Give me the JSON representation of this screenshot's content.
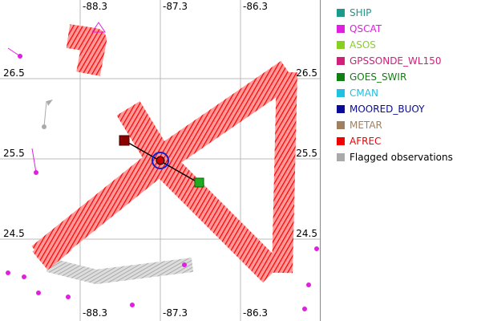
{
  "map": {
    "lon_labels_top": [
      "-88.3",
      "-87.3",
      "-86.3"
    ],
    "lon_labels_bottom": [
      "-88.3",
      "-87.3",
      "-86.3"
    ],
    "lat_labels_left": [
      "26.5",
      "25.5",
      "24.5"
    ],
    "lat_labels_right": [
      "26.5",
      "25.5",
      "24.5"
    ],
    "legend": [
      {
        "name": "SHIP",
        "color": "#1a9a8a"
      },
      {
        "name": "QSCAT",
        "color": "#e020e0"
      },
      {
        "name": "ASOS",
        "color": "#88d020"
      },
      {
        "name": "GPSSONDE_WL150",
        "color": "#d0207a"
      },
      {
        "name": "GOES_SWIR",
        "color": "#108010"
      },
      {
        "name": "CMAN",
        "color": "#20c0e0"
      },
      {
        "name": "MOORED_BUOY",
        "color": "#0a0a9a"
      },
      {
        "name": "METAR",
        "color": "#a08060"
      },
      {
        "name": "AFREC",
        "color": "#f00000"
      },
      {
        "name": "Flagged observations",
        "color": "#aaaaaa"
      }
    ]
  }
}
